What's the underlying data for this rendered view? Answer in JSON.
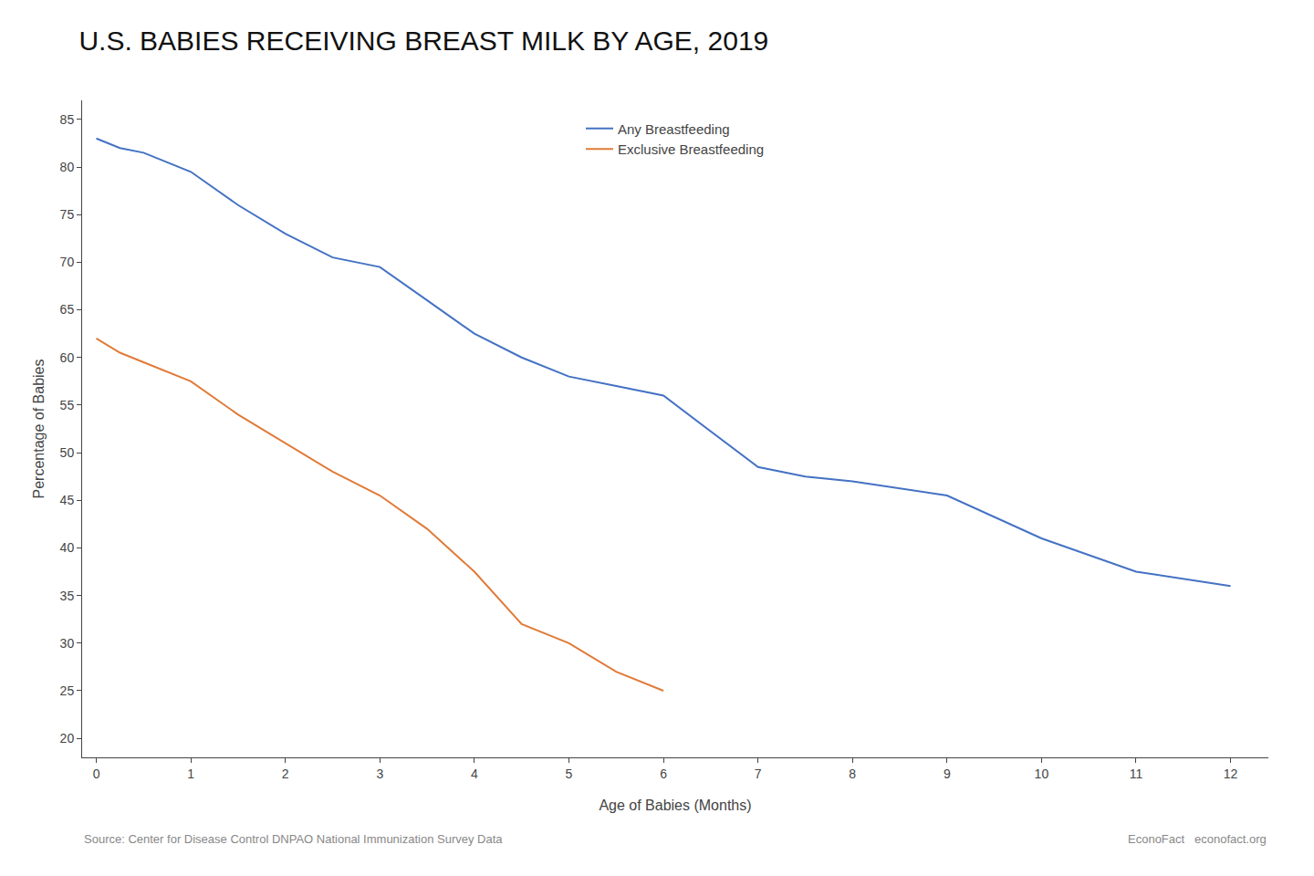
{
  "chart_data": {
    "type": "line",
    "title": "U.S. BABIES RECEIVING BREAST MILK BY AGE, 2019",
    "xlabel": "Age of Babies (Months)",
    "ylabel": "Percentage of Babies",
    "series": [
      {
        "name": "Any Breastfeeding",
        "color": "#4472c4",
        "x": [
          0,
          0.25,
          0.5,
          0.75,
          1,
          1.5,
          2,
          2.5,
          3,
          3.5,
          4,
          4.5,
          5,
          5.5,
          6,
          7,
          7.5,
          8,
          9,
          10,
          11,
          12
        ],
        "values": [
          83,
          82,
          81.5,
          80.5,
          79.5,
          76,
          73,
          70.5,
          69.5,
          66,
          62.5,
          60,
          58,
          57,
          56,
          48.5,
          47.5,
          47,
          45.5,
          41,
          37.5,
          36
        ]
      },
      {
        "name": "Exclusive Breastfeeding",
        "color": "#e07b39",
        "x": [
          0,
          0.25,
          0.5,
          0.75,
          1,
          1.5,
          2,
          2.5,
          3,
          3.5,
          4,
          4.5,
          5,
          5.5,
          6
        ],
        "values": [
          62,
          60.5,
          59.5,
          58.5,
          57.5,
          54,
          51,
          48,
          45.5,
          42,
          37.5,
          32,
          30,
          27,
          25
        ]
      }
    ],
    "xlim": [
      -0.15,
      12.4
    ],
    "ylim": [
      18,
      87
    ],
    "xticks": [
      0,
      1,
      2,
      3,
      4,
      5,
      6,
      7,
      8,
      9,
      10,
      11,
      12
    ],
    "yticks": [
      20,
      25,
      30,
      35,
      40,
      45,
      50,
      55,
      60,
      65,
      70,
      75,
      80,
      85
    ],
    "grid": false,
    "legend": "upper center",
    "annotations": [
      "Source: Center for Disease Control DNPAO National Immunization Survey Data",
      "EconoFact   econofact.org"
    ]
  }
}
